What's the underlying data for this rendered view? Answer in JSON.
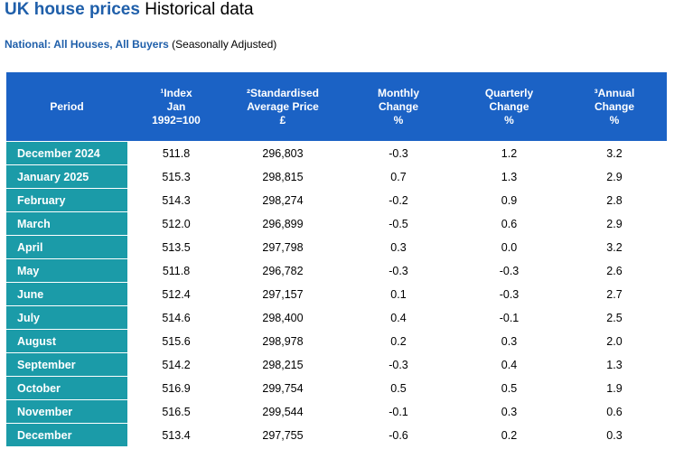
{
  "title": {
    "brand": "UK house prices",
    "rest": "Historical data"
  },
  "subtitle": {
    "strong": "National: All Houses, All Buyers",
    "light": "(Seasonally Adjusted)"
  },
  "table": {
    "headers": [
      "Period",
      "¹Index\nJan\n1992=100",
      "²Standardised\nAverage Price\n£",
      "Monthly\nChange\n%",
      "Quarterly\nChange\n%",
      "³Annual\nChange\n%"
    ],
    "rows": [
      [
        "December 2024",
        "511.8",
        "296,803",
        "-0.3",
        "1.2",
        "3.2"
      ],
      [
        "January 2025",
        "515.3",
        "298,815",
        "0.7",
        "1.3",
        "2.9"
      ],
      [
        "February",
        "514.3",
        "298,274",
        "-0.2",
        "0.9",
        "2.8"
      ],
      [
        "March",
        "512.0",
        "296,899",
        "-0.5",
        "0.6",
        "2.9"
      ],
      [
        "April",
        "513.5",
        "297,798",
        "0.3",
        "0.0",
        "3.2"
      ],
      [
        "May",
        "511.8",
        "296,782",
        "-0.3",
        "-0.3",
        "2.6"
      ],
      [
        "June",
        "512.4",
        "297,157",
        "0.1",
        "-0.3",
        "2.7"
      ],
      [
        "July",
        "514.6",
        "298,400",
        "0.4",
        "-0.1",
        "2.5"
      ],
      [
        "August",
        "515.6",
        "298,978",
        "0.2",
        "0.3",
        "2.0"
      ],
      [
        "September",
        "514.2",
        "298,215",
        "-0.3",
        "0.4",
        "1.3"
      ],
      [
        "October",
        "516.9",
        "299,754",
        "0.5",
        "0.5",
        "1.9"
      ],
      [
        "November",
        "516.5",
        "299,544",
        "-0.1",
        "0.3",
        "0.6"
      ],
      [
        "December",
        "513.4",
        "297,755",
        "-0.6",
        "0.2",
        "0.3"
      ]
    ]
  },
  "colors": {
    "brand_blue": "#1f5faa",
    "header_bg": "#1b62c5",
    "period_bg": "#1b9ba8"
  }
}
